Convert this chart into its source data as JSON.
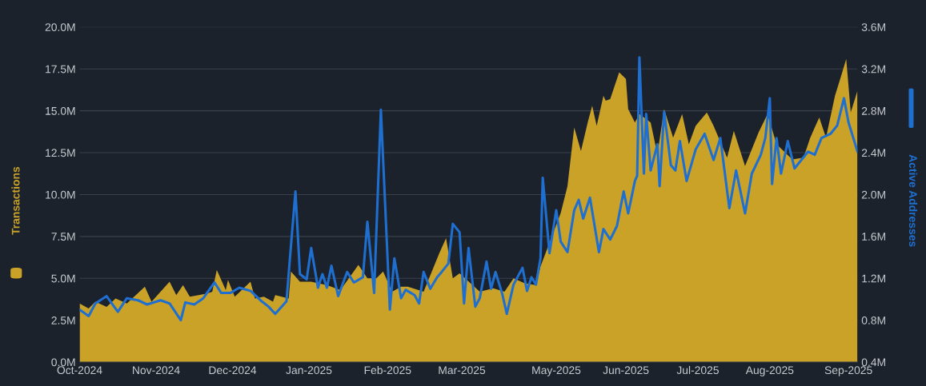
{
  "chart_data": {
    "type": "area",
    "xlim": [
      "2024-10-01",
      "2025-09-12"
    ],
    "xticks": [
      {
        "value": "2024-10-01",
        "label": "Oct-2024"
      },
      {
        "value": "2024-11-04",
        "label": "Nov-2024"
      },
      {
        "value": "2024-12-08",
        "label": "Dec-2024"
      },
      {
        "value": "2025-01-11",
        "label": "Jan-2025"
      },
      {
        "value": "2025-02-15",
        "label": "Feb-2025"
      },
      {
        "value": "2025-03-20",
        "label": "Mar-2025"
      },
      {
        "value": "2025-05-01",
        "label": "May-2025"
      },
      {
        "value": "2025-06-01",
        "label": "Jun-2025"
      },
      {
        "value": "2025-07-03",
        "label": "Jul-2025"
      },
      {
        "value": "2025-08-04",
        "label": "Aug-2025"
      },
      {
        "value": "2025-09-08",
        "label": "Sep-2025"
      }
    ],
    "ylim": [
      0,
      20
    ],
    "yticks": [
      {
        "value": 0,
        "label": "0.0M"
      },
      {
        "value": 2.5,
        "label": "2.5M"
      },
      {
        "value": 5,
        "label": "5.0M"
      },
      {
        "value": 7.5,
        "label": "7.5M"
      },
      {
        "value": 10,
        "label": "10.0M"
      },
      {
        "value": 12.5,
        "label": "12.5M"
      },
      {
        "value": 15,
        "label": "15.0M"
      },
      {
        "value": 17.5,
        "label": "17.5M"
      },
      {
        "value": 20,
        "label": "20.0M"
      }
    ],
    "y2lim": [
      0.4,
      3.6
    ],
    "y2ticks": [
      {
        "value": 0.4,
        "label": "0.4M"
      },
      {
        "value": 0.8,
        "label": "0.8M"
      },
      {
        "value": 1.2,
        "label": "1.2M"
      },
      {
        "value": 1.6,
        "label": "1.6M"
      },
      {
        "value": 2.0,
        "label": "2.0M"
      },
      {
        "value": 2.4,
        "label": "2.4M"
      },
      {
        "value": 2.8,
        "label": "2.8M"
      },
      {
        "value": 3.2,
        "label": "3.2M"
      },
      {
        "value": 3.6,
        "label": "3.6M"
      }
    ],
    "grid": "y",
    "series": [
      {
        "name": "Transactions",
        "color": "#c9a227",
        "x": [
          "2024-10-01",
          "2024-10-05",
          "2024-10-08",
          "2024-10-13",
          "2024-10-17",
          "2024-10-22",
          "2024-10-26",
          "2024-10-30",
          "2024-11-02",
          "2024-11-06",
          "2024-11-10",
          "2024-11-13",
          "2024-11-16",
          "2024-11-19",
          "2024-11-23",
          "2024-11-27",
          "2024-11-29",
          "2024-12-01",
          "2024-12-05",
          "2024-12-06",
          "2024-12-09",
          "2024-12-16",
          "2024-12-18",
          "2024-12-22",
          "2024-12-26",
          "2024-12-27",
          "2025-01-02",
          "2025-01-03",
          "2025-01-07",
          "2025-01-12",
          "2025-01-19",
          "2025-01-25",
          "2025-02-02",
          "2025-02-06",
          "2025-02-10",
          "2025-02-13",
          "2025-02-17",
          "2025-02-21",
          "2025-02-24",
          "2025-03-03",
          "2025-03-10",
          "2025-03-13",
          "2025-03-16",
          "2025-03-19",
          "2025-03-28",
          "2025-04-03",
          "2025-04-08",
          "2025-04-12",
          "2025-04-17",
          "2025-04-22",
          "2025-04-24",
          "2025-05-03",
          "2025-05-06",
          "2025-05-09",
          "2025-05-12",
          "2025-05-15",
          "2025-05-17",
          "2025-05-19",
          "2025-05-22",
          "2025-05-23",
          "2025-05-25",
          "2025-05-29",
          "2025-06-01",
          "2025-06-02",
          "2025-06-05",
          "2025-06-07",
          "2025-06-12",
          "2025-06-15",
          "2025-06-18",
          "2025-06-22",
          "2025-06-26",
          "2025-06-29",
          "2025-07-02",
          "2025-07-07",
          "2025-07-10",
          "2025-07-16",
          "2025-07-19",
          "2025-07-24",
          "2025-07-30",
          "2025-08-03",
          "2025-08-07",
          "2025-08-14",
          "2025-08-19",
          "2025-08-22",
          "2025-08-26",
          "2025-08-29",
          "2025-09-02",
          "2025-09-05",
          "2025-09-07",
          "2025-09-09",
          "2025-09-12"
        ],
        "values": [
          3.5,
          3.2,
          3.6,
          3.3,
          3.8,
          3.5,
          4.0,
          4.5,
          3.6,
          4.2,
          4.8,
          4.0,
          4.6,
          3.9,
          4.0,
          4.1,
          4.2,
          5.5,
          4.3,
          4.9,
          3.9,
          4.8,
          3.8,
          3.9,
          3.6,
          4.0,
          3.8,
          5.4,
          4.8,
          4.8,
          4.6,
          4.3,
          5.8,
          5.0,
          5.0,
          5.4,
          4.2,
          4.5,
          4.5,
          4.2,
          6.5,
          7.4,
          5.0,
          5.3,
          4.2,
          4.4,
          4.2,
          5.0,
          4.7,
          4.6,
          5.7,
          8.9,
          10.5,
          14.0,
          12.6,
          14.3,
          15.3,
          14.1,
          15.9,
          15.6,
          15.7,
          17.3,
          16.9,
          15.1,
          14.3,
          14.8,
          14.3,
          12.4,
          15.1,
          13.4,
          14.8,
          13.0,
          14.1,
          14.9,
          14.1,
          12.2,
          13.8,
          11.7,
          13.7,
          14.8,
          13.0,
          12.1,
          12.2,
          13.4,
          14.6,
          13.4,
          15.9,
          17.2,
          18.1,
          14.9,
          16.2
        ]
      },
      {
        "name": "Active Addresses",
        "type": "line",
        "axis": "y2",
        "color": "#1f6fd1",
        "x": [
          "2024-10-01",
          "2024-10-05",
          "2024-10-08",
          "2024-10-13",
          "2024-10-18",
          "2024-10-22",
          "2024-10-27",
          "2024-10-31",
          "2024-11-06",
          "2024-11-10",
          "2024-11-15",
          "2024-11-17",
          "2024-11-21",
          "2024-11-25",
          "2024-11-30",
          "2024-12-03",
          "2024-12-07",
          "2024-12-11",
          "2024-12-16",
          "2024-12-21",
          "2024-12-24",
          "2024-12-27",
          "2025-01-01",
          "2025-01-03",
          "2025-01-05",
          "2025-01-07",
          "2025-01-10",
          "2025-01-12",
          "2025-01-15",
          "2025-01-17",
          "2025-01-19",
          "2025-01-21",
          "2025-01-24",
          "2025-01-28",
          "2025-01-31",
          "2025-02-04",
          "2025-02-06",
          "2025-02-09",
          "2025-02-12",
          "2025-02-16",
          "2025-02-18",
          "2025-02-21",
          "2025-02-23",
          "2025-02-27",
          "2025-03-01",
          "2025-03-03",
          "2025-03-06",
          "2025-03-09",
          "2025-03-11",
          "2025-03-14",
          "2025-03-16",
          "2025-03-19",
          "2025-03-21",
          "2025-03-23",
          "2025-03-26",
          "2025-03-28",
          "2025-03-31",
          "2025-04-02",
          "2025-04-04",
          "2025-04-07",
          "2025-04-09",
          "2025-04-12",
          "2025-04-16",
          "2025-04-18",
          "2025-04-20",
          "2025-04-22",
          "2025-04-24",
          "2025-04-25",
          "2025-04-28",
          "2025-05-01",
          "2025-05-03",
          "2025-05-06",
          "2025-05-09",
          "2025-05-11",
          "2025-05-13",
          "2025-05-16",
          "2025-05-20",
          "2025-05-22",
          "2025-05-25",
          "2025-05-28",
          "2025-05-31",
          "2025-06-02",
          "2025-06-05",
          "2025-06-06",
          "2025-06-07",
          "2025-06-09",
          "2025-06-10",
          "2025-06-12",
          "2025-06-15",
          "2025-06-16",
          "2025-06-18",
          "2025-06-21",
          "2025-06-23",
          "2025-06-25",
          "2025-06-28",
          "2025-07-02",
          "2025-07-06",
          "2025-07-10",
          "2025-07-13",
          "2025-07-17",
          "2025-07-20",
          "2025-07-24",
          "2025-07-27",
          "2025-07-31",
          "2025-08-02",
          "2025-08-04",
          "2025-08-05",
          "2025-08-07",
          "2025-08-09",
          "2025-08-12",
          "2025-08-15",
          "2025-08-18",
          "2025-08-21",
          "2025-08-24",
          "2025-08-27",
          "2025-08-31",
          "2025-09-03",
          "2025-09-06",
          "2025-09-08",
          "2025-09-12"
        ],
        "values": [
          0.9,
          0.84,
          0.96,
          1.03,
          0.88,
          1.01,
          0.99,
          0.95,
          0.99,
          0.96,
          0.8,
          0.97,
          0.95,
          1.01,
          1.16,
          1.06,
          1.06,
          1.11,
          1.08,
          0.98,
          0.93,
          0.86,
          0.98,
          1.51,
          2.03,
          1.24,
          1.19,
          1.49,
          1.11,
          1.24,
          1.11,
          1.32,
          1.03,
          1.26,
          1.16,
          1.21,
          1.74,
          1.06,
          2.81,
          0.9,
          1.39,
          1.01,
          1.09,
          1.04,
          0.96,
          1.26,
          1.1,
          1.21,
          1.26,
          1.34,
          1.72,
          1.64,
          0.96,
          1.49,
          0.93,
          1.01,
          1.36,
          1.1,
          1.26,
          1.05,
          0.86,
          1.14,
          1.3,
          1.08,
          1.21,
          1.14,
          1.39,
          2.16,
          1.44,
          1.85,
          1.55,
          1.45,
          1.85,
          1.95,
          1.77,
          1.97,
          1.45,
          1.67,
          1.57,
          1.7,
          2.03,
          1.82,
          2.13,
          2.18,
          3.31,
          2.2,
          2.77,
          2.23,
          2.48,
          2.08,
          2.79,
          2.28,
          2.23,
          2.51,
          2.13,
          2.43,
          2.58,
          2.33,
          2.54,
          1.87,
          2.23,
          1.82,
          2.2,
          2.38,
          2.54,
          2.92,
          2.1,
          2.54,
          2.2,
          2.51,
          2.25,
          2.33,
          2.41,
          2.38,
          2.54,
          2.58,
          2.66,
          2.92,
          2.69,
          2.41
        ]
      }
    ]
  }
}
